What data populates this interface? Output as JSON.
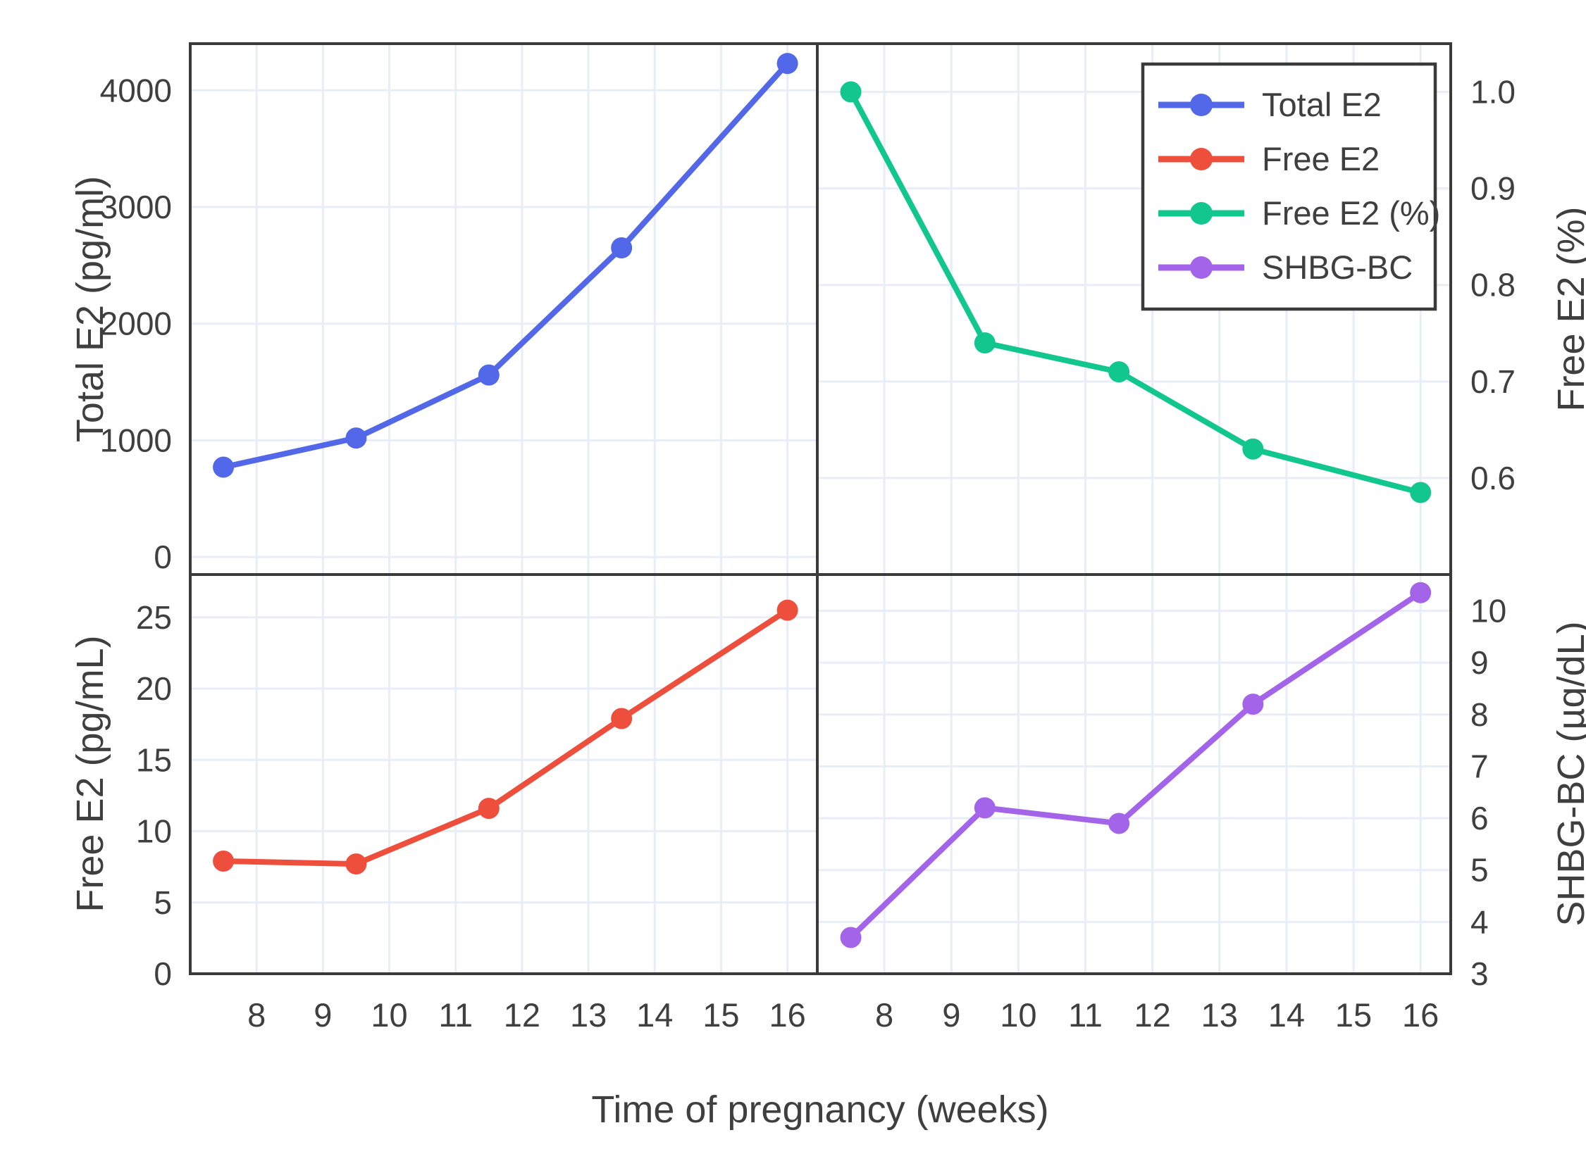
{
  "figure": {
    "xlabel": "Time of pregnancy (weeks)",
    "x_ticks": [
      8,
      9,
      10,
      11,
      12,
      13,
      14,
      15,
      16
    ],
    "x_range": [
      7.0,
      16.45
    ],
    "background_color": "#ffffff",
    "grid_color": "#e9edf7",
    "border_color": "#3a3a3a",
    "text_color": "#3f3f3f"
  },
  "chart_data": [
    {
      "type": "line",
      "position": "top-left",
      "name": "Total E2",
      "color": "#5268e8",
      "x": [
        7.5,
        9.5,
        11.5,
        13.5,
        16
      ],
      "y": [
        770,
        1020,
        1560,
        2650,
        4230
      ],
      "xlabel": "Time of pregnancy (weeks)",
      "ylabel": "Total E2 (pg/ml)",
      "ylabel_side": "left",
      "yticks": [
        0,
        1000,
        2000,
        3000,
        4000
      ],
      "ytick_labels": [
        "0",
        "1000",
        "2000",
        "3000",
        "4000"
      ],
      "ylim": [
        -150,
        4400
      ],
      "grid": true,
      "show_xticklabels": false
    },
    {
      "type": "line",
      "position": "top-right",
      "name": "Free E2 (%)",
      "color": "#12c78e",
      "x": [
        7.5,
        9.5,
        11.5,
        13.5,
        16
      ],
      "y": [
        1.0,
        0.74,
        0.71,
        0.63,
        0.585
      ],
      "xlabel": "Time of pregnancy (weeks)",
      "ylabel": "Free E2 (%)",
      "ylabel_side": "right",
      "yticks": [
        0.6,
        0.7,
        0.8,
        0.9,
        1.0
      ],
      "ytick_labels": [
        "0.6",
        "0.7",
        "0.8",
        "0.9",
        "1.0"
      ],
      "ylim": [
        0.5,
        1.05
      ],
      "grid": true,
      "show_xticklabels": false
    },
    {
      "type": "line",
      "position": "bottom-left",
      "name": "Free E2",
      "color": "#ee4f3d",
      "x": [
        7.5,
        9.5,
        11.5,
        13.5,
        16
      ],
      "y": [
        7.9,
        7.7,
        11.6,
        17.9,
        25.5
      ],
      "xlabel": "Time of pregnancy (weeks)",
      "ylabel": "Free E2 (pg/mL)",
      "ylabel_side": "left",
      "yticks": [
        0,
        5,
        10,
        15,
        20,
        25
      ],
      "ytick_labels": [
        "0",
        "5",
        "10",
        "15",
        "20",
        "25"
      ],
      "ylim": [
        0,
        28
      ],
      "grid": true,
      "show_xticklabels": true
    },
    {
      "type": "line",
      "position": "bottom-right",
      "name": "SHBG-BC",
      "color": "#a364e9",
      "x": [
        7.5,
        9.5,
        11.5,
        13.5,
        16
      ],
      "y": [
        3.7,
        6.2,
        5.9,
        8.2,
        10.35
      ],
      "xlabel": "Time of pregnancy (weeks)",
      "ylabel": "SHBG-BC (µg/dL)",
      "ylabel_side": "right",
      "yticks": [
        3,
        4,
        5,
        6,
        7,
        8,
        9,
        10
      ],
      "ytick_labels": [
        "3",
        "4",
        "5",
        "6",
        "7",
        "8",
        "9",
        "10"
      ],
      "ylim": [
        3,
        10.7
      ],
      "grid": true,
      "show_xticklabels": true
    }
  ],
  "legend": {
    "position": "top-right",
    "entries": [
      {
        "label": "Total E2",
        "color": "#5268e8"
      },
      {
        "label": "Free E2",
        "color": "#ee4f3d"
      },
      {
        "label": "Free E2 (%)",
        "color": "#12c78e"
      },
      {
        "label": "SHBG-BC",
        "color": "#a364e9"
      }
    ]
  }
}
